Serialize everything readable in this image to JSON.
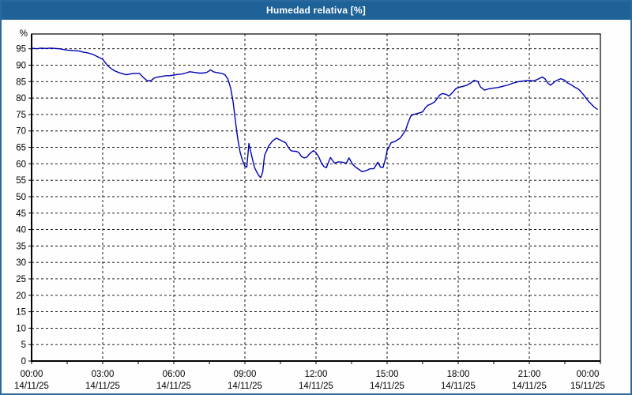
{
  "window": {
    "title": "Humedad relativa [%]",
    "colors": {
      "title_bar": "#1E6298",
      "border": "#2A6A9E",
      "background": "#FDFEFD",
      "plot_line": "#0000B4",
      "grid": "#000000",
      "text": "#000000"
    }
  },
  "chart_data": {
    "type": "line",
    "title": "Humedad relativa [%]",
    "xlabel": "",
    "ylabel": "%",
    "ylim": [
      0,
      99.5
    ],
    "grid": "dashed",
    "legend": "none",
    "series_color": "#0000B4",
    "y_ticks": [
      0,
      5,
      10,
      15,
      20,
      25,
      30,
      35,
      40,
      45,
      50,
      55,
      60,
      65,
      70,
      75,
      80,
      85,
      90,
      95
    ],
    "x_minor_tick_hours": 1.5,
    "x_ticks": [
      {
        "hour": 0,
        "time": "00:00",
        "date": "14/11/25"
      },
      {
        "hour": 3,
        "time": "03:00",
        "date": "14/11/25"
      },
      {
        "hour": 6,
        "time": "06:00",
        "date": "14/11/25"
      },
      {
        "hour": 9,
        "time": "09:00",
        "date": "14/11/25"
      },
      {
        "hour": 12,
        "time": "12:00",
        "date": "14/11/25"
      },
      {
        "hour": 15,
        "time": "15:00",
        "date": "14/11/25"
      },
      {
        "hour": 18,
        "time": "18:00",
        "date": "14/11/25"
      },
      {
        "hour": 21,
        "time": "21:00",
        "date": "14/11/25"
      },
      {
        "hour": 24,
        "time": "00:00",
        "date": "15/11/25"
      }
    ],
    "series": [
      {
        "name": "Humedad relativa [%]",
        "points": [
          [
            0.0,
            95.2
          ],
          [
            0.2,
            95.0
          ],
          [
            0.4,
            95.2
          ],
          [
            0.6,
            95.1
          ],
          [
            0.8,
            95.2
          ],
          [
            1.0,
            95.1
          ],
          [
            1.17,
            95.0
          ],
          [
            1.33,
            94.8
          ],
          [
            1.5,
            94.6
          ],
          [
            1.67,
            94.5
          ],
          [
            1.83,
            94.4
          ],
          [
            2.0,
            94.3
          ],
          [
            2.17,
            94.0
          ],
          [
            2.33,
            93.8
          ],
          [
            2.5,
            93.5
          ],
          [
            2.67,
            93.0
          ],
          [
            2.83,
            92.4
          ],
          [
            3.0,
            91.8
          ],
          [
            3.17,
            90.2
          ],
          [
            3.28,
            89.4
          ],
          [
            3.39,
            88.8
          ],
          [
            3.5,
            88.3
          ],
          [
            3.67,
            87.8
          ],
          [
            3.83,
            87.4
          ],
          [
            4.0,
            87.1
          ],
          [
            4.22,
            87.4
          ],
          [
            4.39,
            87.5
          ],
          [
            4.55,
            87.5
          ],
          [
            4.72,
            86.2
          ],
          [
            4.89,
            85.2
          ],
          [
            5.06,
            85.4
          ],
          [
            5.17,
            86.1
          ],
          [
            5.33,
            86.4
          ],
          [
            5.5,
            86.6
          ],
          [
            5.67,
            86.8
          ],
          [
            5.83,
            86.8
          ],
          [
            6.0,
            87.0
          ],
          [
            6.17,
            87.2
          ],
          [
            6.33,
            87.3
          ],
          [
            6.5,
            87.6
          ],
          [
            6.67,
            88.0
          ],
          [
            6.89,
            87.8
          ],
          [
            7.06,
            87.6
          ],
          [
            7.22,
            87.6
          ],
          [
            7.39,
            87.8
          ],
          [
            7.55,
            88.6
          ],
          [
            7.67,
            88.0
          ],
          [
            7.78,
            87.8
          ],
          [
            7.94,
            87.6
          ],
          [
            8.06,
            87.4
          ],
          [
            8.17,
            87.0
          ],
          [
            8.28,
            85.8
          ],
          [
            8.4,
            83.0
          ],
          [
            8.5,
            79.0
          ],
          [
            8.6,
            73.0
          ],
          [
            8.7,
            67.5
          ],
          [
            8.8,
            63.5
          ],
          [
            8.9,
            61.0
          ],
          [
            9.0,
            59.3
          ],
          [
            9.08,
            59.0
          ],
          [
            9.17,
            66.2
          ],
          [
            9.3,
            62.0
          ],
          [
            9.4,
            59.0
          ],
          [
            9.5,
            57.5
          ],
          [
            9.6,
            56.3
          ],
          [
            9.67,
            55.8
          ],
          [
            9.75,
            57.5
          ],
          [
            9.83,
            62.6
          ],
          [
            9.92,
            64.0
          ],
          [
            10.0,
            65.4
          ],
          [
            10.17,
            67.0
          ],
          [
            10.33,
            67.8
          ],
          [
            10.5,
            67.2
          ],
          [
            10.61,
            66.8
          ],
          [
            10.72,
            66.4
          ],
          [
            10.83,
            65.0
          ],
          [
            10.94,
            64.0
          ],
          [
            11.06,
            63.8
          ],
          [
            11.17,
            63.8
          ],
          [
            11.28,
            63.4
          ],
          [
            11.39,
            62.2
          ],
          [
            11.5,
            61.8
          ],
          [
            11.61,
            62.0
          ],
          [
            11.72,
            63.0
          ],
          [
            11.89,
            64.0
          ],
          [
            12.0,
            63.4
          ],
          [
            12.11,
            62.2
          ],
          [
            12.22,
            60.4
          ],
          [
            12.33,
            59.2
          ],
          [
            12.44,
            58.8
          ],
          [
            12.5,
            60.0
          ],
          [
            12.61,
            61.9
          ],
          [
            12.72,
            60.8
          ],
          [
            12.78,
            60.2
          ],
          [
            12.94,
            60.6
          ],
          [
            13.11,
            60.5
          ],
          [
            13.28,
            60.2
          ],
          [
            13.39,
            61.8
          ],
          [
            13.55,
            59.8
          ],
          [
            13.67,
            59.0
          ],
          [
            13.83,
            58.2
          ],
          [
            13.94,
            57.6
          ],
          [
            14.11,
            57.9
          ],
          [
            14.28,
            58.5
          ],
          [
            14.44,
            58.5
          ],
          [
            14.61,
            60.5
          ],
          [
            14.72,
            59.0
          ],
          [
            14.83,
            58.9
          ],
          [
            14.94,
            61.8
          ],
          [
            15.0,
            64.0
          ],
          [
            15.17,
            66.4
          ],
          [
            15.33,
            66.8
          ],
          [
            15.55,
            67.8
          ],
          [
            15.67,
            69.0
          ],
          [
            15.78,
            70.2
          ],
          [
            15.89,
            72.6
          ],
          [
            16.0,
            74.5
          ],
          [
            16.11,
            75.0
          ],
          [
            16.28,
            75.3
          ],
          [
            16.5,
            75.8
          ],
          [
            16.61,
            77.0
          ],
          [
            16.72,
            77.8
          ],
          [
            16.83,
            78.1
          ],
          [
            17.0,
            78.8
          ],
          [
            17.11,
            79.8
          ],
          [
            17.22,
            80.9
          ],
          [
            17.33,
            81.4
          ],
          [
            17.5,
            81.1
          ],
          [
            17.61,
            80.6
          ],
          [
            17.78,
            81.8
          ],
          [
            17.89,
            82.8
          ],
          [
            18.0,
            83.2
          ],
          [
            18.17,
            83.5
          ],
          [
            18.33,
            83.8
          ],
          [
            18.5,
            84.4
          ],
          [
            18.67,
            85.4
          ],
          [
            18.83,
            85.0
          ],
          [
            18.94,
            83.4
          ],
          [
            19.11,
            82.4
          ],
          [
            19.28,
            82.8
          ],
          [
            19.44,
            83.0
          ],
          [
            19.67,
            83.2
          ],
          [
            19.89,
            83.6
          ],
          [
            20.11,
            84.0
          ],
          [
            20.33,
            84.6
          ],
          [
            20.55,
            85.0
          ],
          [
            20.78,
            85.2
          ],
          [
            21.0,
            85.4
          ],
          [
            21.17,
            85.2
          ],
          [
            21.33,
            85.6
          ],
          [
            21.55,
            86.4
          ],
          [
            21.67,
            85.8
          ],
          [
            21.78,
            84.6
          ],
          [
            21.89,
            83.9
          ],
          [
            22.11,
            85.2
          ],
          [
            22.33,
            85.9
          ],
          [
            22.5,
            85.4
          ],
          [
            22.61,
            84.6
          ],
          [
            22.78,
            84.0
          ],
          [
            22.94,
            83.2
          ],
          [
            23.06,
            82.8
          ],
          [
            23.17,
            82.0
          ],
          [
            23.28,
            81.1
          ],
          [
            23.39,
            80.0
          ],
          [
            23.5,
            79.0
          ],
          [
            23.61,
            78.2
          ],
          [
            23.72,
            77.4
          ],
          [
            23.83,
            76.8
          ],
          [
            23.87,
            76.6
          ]
        ]
      }
    ]
  }
}
